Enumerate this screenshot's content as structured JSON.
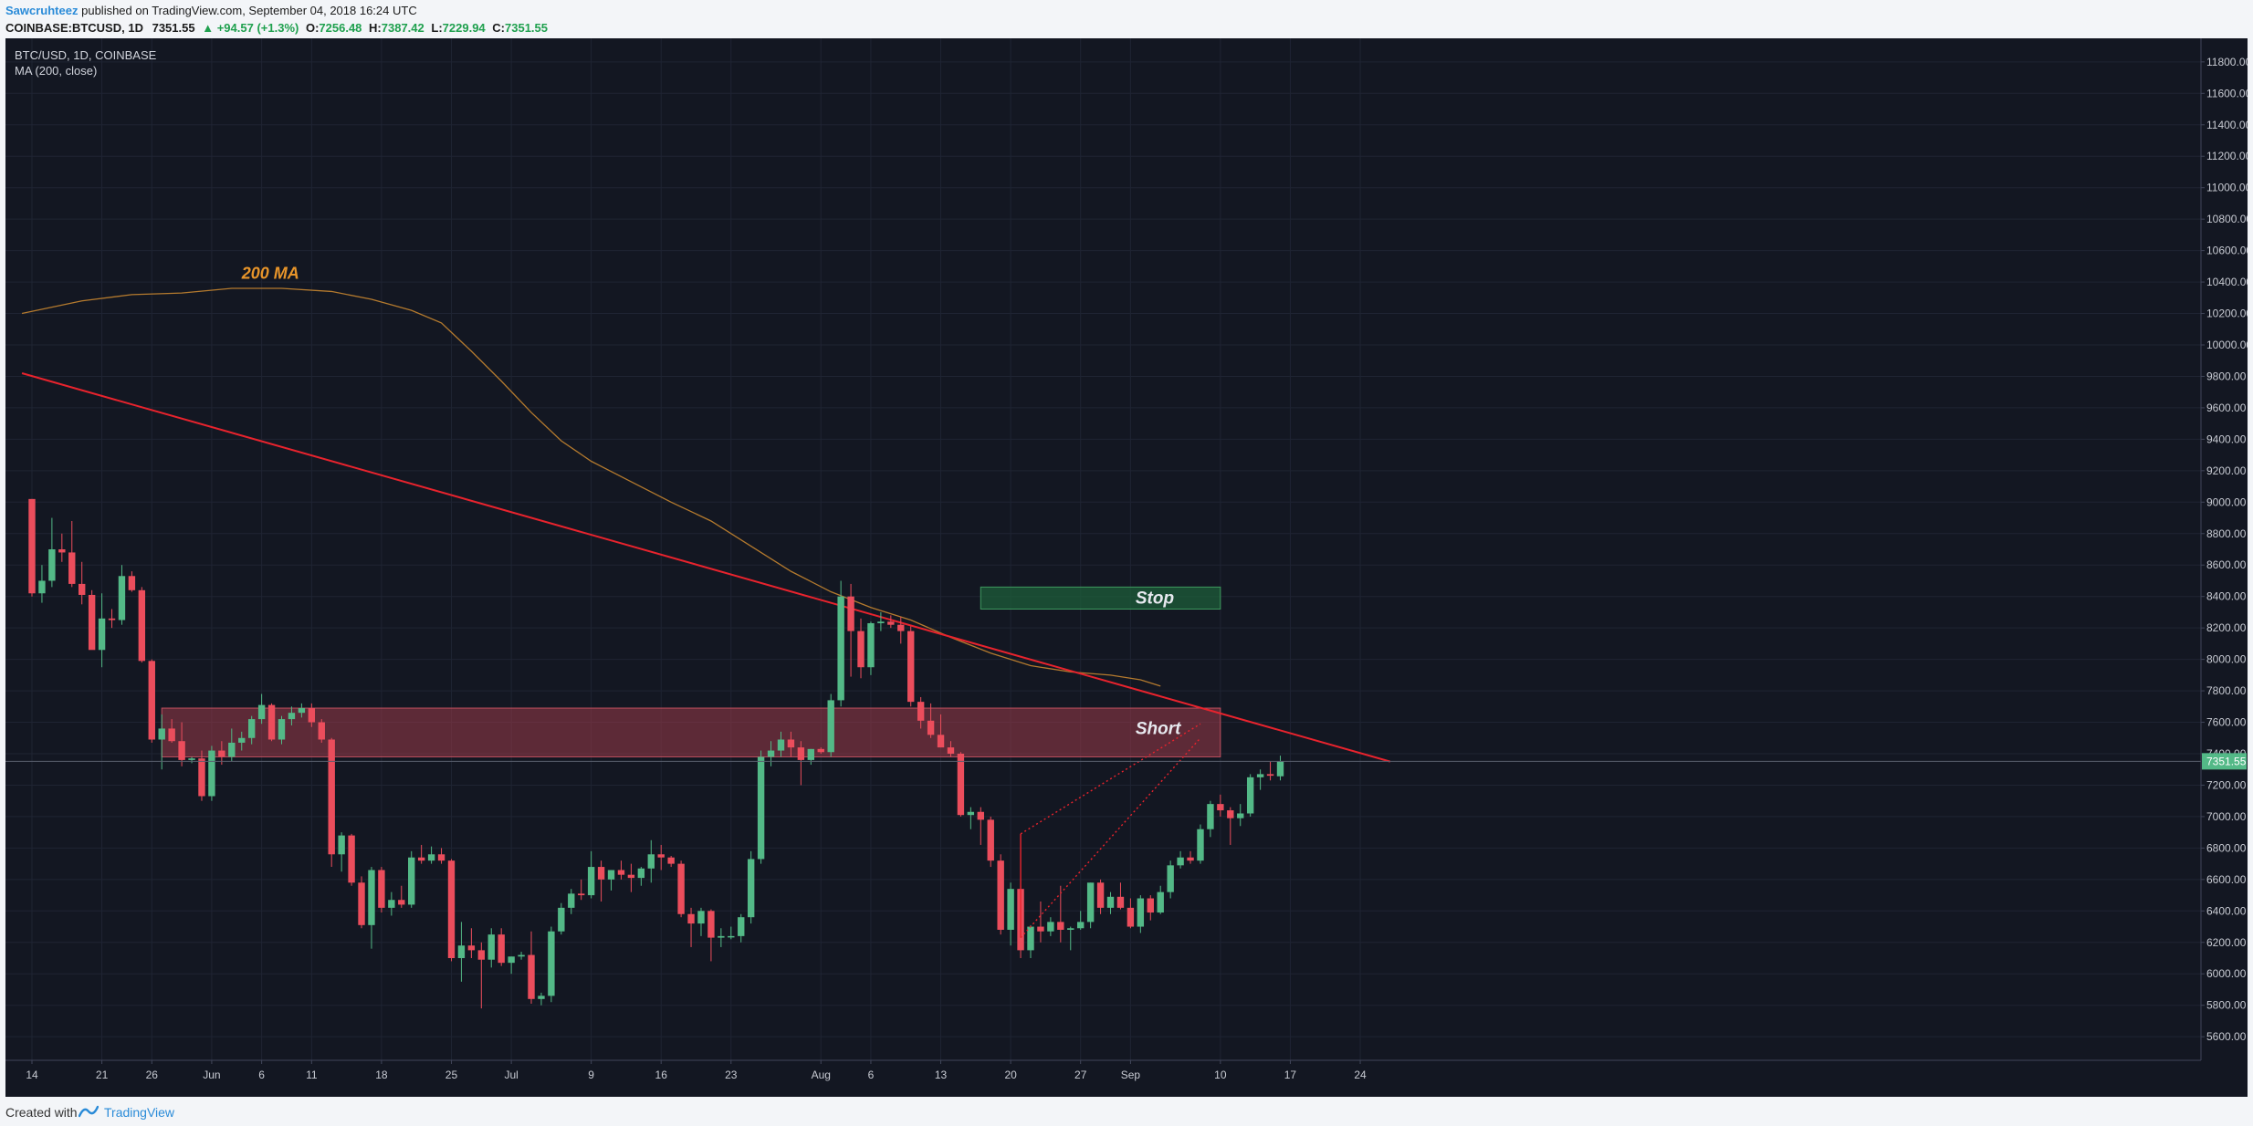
{
  "header": {
    "author": "Sawcruhteez",
    "published_text": "published on TradingView.com, September 04, 2018 16:24 UTC",
    "symbol": "COINBASE:BTCUSD, 1D",
    "last": "7351.55",
    "change": "+94.57 (+1.3%)",
    "open_label": "O:",
    "open": "7256.48",
    "high_label": "H:",
    "high": "7387.42",
    "low_label": "L:",
    "low": "7229.94",
    "close_label": "C:",
    "close": "7351.55"
  },
  "legend": {
    "title": "BTC/USD, 1D, COINBASE",
    "indicator": "MA (200, close)"
  },
  "annotations": {
    "ma_label": "200 MA",
    "stop_label": "Stop",
    "short_label": "Short",
    "price_tag": "7351.55"
  },
  "footer": {
    "created_with": "Created with",
    "brand": "TradingView"
  },
  "colors": {
    "up": "#53b987",
    "down": "#eb4d5c",
    "background": "#131722",
    "ma": "#b47a2e",
    "trendline": "#e8232d",
    "stop_zone": "#1e5e3a",
    "short_zone": "#9b3b49"
  },
  "chart_data": {
    "type": "candlestick",
    "ylim": [
      5450,
      11950
    ],
    "y_ticks": [
      "5600.00",
      "5800.00",
      "6000.00",
      "6200.00",
      "6400.00",
      "6600.00",
      "6800.00",
      "7000.00",
      "7200.00",
      "7400.00",
      "7600.00",
      "7800.00",
      "8000.00",
      "8200.00",
      "8400.00",
      "8600.00",
      "8800.00",
      "9000.00",
      "9200.00",
      "9400.00",
      "9600.00",
      "9800.00",
      "10000.00",
      "10200.00",
      "10400.00",
      "10600.00",
      "10800.00",
      "11000.00",
      "11200.00",
      "11400.00",
      "11600.00",
      "11800.00"
    ],
    "x_ticks": [
      {
        "label": "14",
        "day": 0
      },
      {
        "label": "21",
        "day": 7
      },
      {
        "label": "26",
        "day": 12
      },
      {
        "label": "Jun",
        "day": 18
      },
      {
        "label": "6",
        "day": 23
      },
      {
        "label": "11",
        "day": 28
      },
      {
        "label": "18",
        "day": 35
      },
      {
        "label": "25",
        "day": 42
      },
      {
        "label": "Jul",
        "day": 48
      },
      {
        "label": "9",
        "day": 56
      },
      {
        "label": "16",
        "day": 63
      },
      {
        "label": "23",
        "day": 70
      },
      {
        "label": "Aug",
        "day": 79
      },
      {
        "label": "6",
        "day": 84
      },
      {
        "label": "13",
        "day": 91
      },
      {
        "label": "20",
        "day": 98
      },
      {
        "label": "27",
        "day": 105
      },
      {
        "label": "Sep",
        "day": 110
      },
      {
        "label": "10",
        "day": 119
      },
      {
        "label": "17",
        "day": 126
      },
      {
        "label": "24",
        "day": 133
      }
    ],
    "candles": [
      {
        "o": 9020,
        "h": 9020,
        "l": 8400,
        "c": 8420
      },
      {
        "o": 8420,
        "h": 8600,
        "l": 8360,
        "c": 8500
      },
      {
        "o": 8500,
        "h": 8900,
        "l": 8460,
        "c": 8700
      },
      {
        "o": 8700,
        "h": 8800,
        "l": 8620,
        "c": 8680
      },
      {
        "o": 8680,
        "h": 8880,
        "l": 8460,
        "c": 8480
      },
      {
        "o": 8480,
        "h": 8620,
        "l": 8350,
        "c": 8410
      },
      {
        "o": 8410,
        "h": 8440,
        "l": 8080,
        "c": 8060
      },
      {
        "o": 8060,
        "h": 8420,
        "l": 7950,
        "c": 8260
      },
      {
        "o": 8260,
        "h": 8320,
        "l": 8200,
        "c": 8250
      },
      {
        "o": 8250,
        "h": 8600,
        "l": 8220,
        "c": 8530
      },
      {
        "o": 8530,
        "h": 8560,
        "l": 8430,
        "c": 8440
      },
      {
        "o": 8440,
        "h": 8460,
        "l": 7980,
        "c": 7990
      },
      {
        "o": 7990,
        "h": 8000,
        "l": 7470,
        "c": 7490
      },
      {
        "o": 7490,
        "h": 7650,
        "l": 7300,
        "c": 7560
      },
      {
        "o": 7560,
        "h": 7620,
        "l": 7470,
        "c": 7480
      },
      {
        "o": 7480,
        "h": 7600,
        "l": 7320,
        "c": 7360
      },
      {
        "o": 7360,
        "h": 7380,
        "l": 7340,
        "c": 7370
      },
      {
        "o": 7370,
        "h": 7420,
        "l": 7100,
        "c": 7130
      },
      {
        "o": 7130,
        "h": 7450,
        "l": 7100,
        "c": 7420
      },
      {
        "o": 7420,
        "h": 7480,
        "l": 7330,
        "c": 7380
      },
      {
        "o": 7380,
        "h": 7560,
        "l": 7350,
        "c": 7470
      },
      {
        "o": 7470,
        "h": 7540,
        "l": 7420,
        "c": 7500
      },
      {
        "o": 7500,
        "h": 7640,
        "l": 7460,
        "c": 7620
      },
      {
        "o": 7620,
        "h": 7780,
        "l": 7590,
        "c": 7710
      },
      {
        "o": 7710,
        "h": 7720,
        "l": 7480,
        "c": 7490
      },
      {
        "o": 7490,
        "h": 7640,
        "l": 7460,
        "c": 7620
      },
      {
        "o": 7620,
        "h": 7700,
        "l": 7580,
        "c": 7660
      },
      {
        "o": 7660,
        "h": 7720,
        "l": 7630,
        "c": 7690
      },
      {
        "o": 7690,
        "h": 7720,
        "l": 7570,
        "c": 7600
      },
      {
        "o": 7600,
        "h": 7620,
        "l": 7470,
        "c": 7490
      },
      {
        "o": 7490,
        "h": 7500,
        "l": 6680,
        "c": 6760
      },
      {
        "o": 6760,
        "h": 6900,
        "l": 6650,
        "c": 6880
      },
      {
        "o": 6880,
        "h": 6890,
        "l": 6560,
        "c": 6580
      },
      {
        "o": 6580,
        "h": 6620,
        "l": 6290,
        "c": 6310
      },
      {
        "o": 6310,
        "h": 6680,
        "l": 6160,
        "c": 6660
      },
      {
        "o": 6660,
        "h": 6680,
        "l": 6390,
        "c": 6420
      },
      {
        "o": 6420,
        "h": 6520,
        "l": 6370,
        "c": 6470
      },
      {
        "o": 6470,
        "h": 6560,
        "l": 6420,
        "c": 6440
      },
      {
        "o": 6440,
        "h": 6780,
        "l": 6420,
        "c": 6740
      },
      {
        "o": 6740,
        "h": 6820,
        "l": 6700,
        "c": 6720
      },
      {
        "o": 6720,
        "h": 6810,
        "l": 6700,
        "c": 6760
      },
      {
        "o": 6760,
        "h": 6800,
        "l": 6700,
        "c": 6720
      },
      {
        "o": 6720,
        "h": 6730,
        "l": 6080,
        "c": 6100
      },
      {
        "o": 6100,
        "h": 6330,
        "l": 5950,
        "c": 6180
      },
      {
        "o": 6180,
        "h": 6290,
        "l": 6100,
        "c": 6150
      },
      {
        "o": 6150,
        "h": 6200,
        "l": 5780,
        "c": 6090
      },
      {
        "o": 6090,
        "h": 6290,
        "l": 6040,
        "c": 6250
      },
      {
        "o": 6250,
        "h": 6290,
        "l": 6050,
        "c": 6070
      },
      {
        "o": 6070,
        "h": 6110,
        "l": 6000,
        "c": 6110
      },
      {
        "o": 6110,
        "h": 6140,
        "l": 6090,
        "c": 6120
      },
      {
        "o": 6120,
        "h": 6270,
        "l": 5810,
        "c": 5840
      },
      {
        "o": 5840,
        "h": 5880,
        "l": 5800,
        "c": 5860
      },
      {
        "o": 5860,
        "h": 6300,
        "l": 5820,
        "c": 6270
      },
      {
        "o": 6270,
        "h": 6450,
        "l": 6250,
        "c": 6420
      },
      {
        "o": 6420,
        "h": 6540,
        "l": 6380,
        "c": 6510
      },
      {
        "o": 6510,
        "h": 6600,
        "l": 6470,
        "c": 6500
      },
      {
        "o": 6500,
        "h": 6780,
        "l": 6480,
        "c": 6680
      },
      {
        "o": 6680,
        "h": 6720,
        "l": 6460,
        "c": 6600
      },
      {
        "o": 6600,
        "h": 6660,
        "l": 6530,
        "c": 6660
      },
      {
        "o": 6660,
        "h": 6720,
        "l": 6600,
        "c": 6630
      },
      {
        "o": 6630,
        "h": 6700,
        "l": 6520,
        "c": 6610
      },
      {
        "o": 6610,
        "h": 6680,
        "l": 6560,
        "c": 6670
      },
      {
        "o": 6670,
        "h": 6850,
        "l": 6580,
        "c": 6760
      },
      {
        "o": 6760,
        "h": 6820,
        "l": 6660,
        "c": 6740
      },
      {
        "o": 6740,
        "h": 6750,
        "l": 6680,
        "c": 6700
      },
      {
        "o": 6700,
        "h": 6720,
        "l": 6360,
        "c": 6380
      },
      {
        "o": 6380,
        "h": 6420,
        "l": 6170,
        "c": 6320
      },
      {
        "o": 6320,
        "h": 6420,
        "l": 6240,
        "c": 6400
      },
      {
        "o": 6400,
        "h": 6410,
        "l": 6080,
        "c": 6230
      },
      {
        "o": 6230,
        "h": 6290,
        "l": 6170,
        "c": 6240
      },
      {
        "o": 6240,
        "h": 6300,
        "l": 6220,
        "c": 6240
      },
      {
        "o": 6240,
        "h": 6380,
        "l": 6200,
        "c": 6360
      },
      {
        "o": 6360,
        "h": 6780,
        "l": 6320,
        "c": 6730
      },
      {
        "o": 6730,
        "h": 7420,
        "l": 6700,
        "c": 7380
      },
      {
        "o": 7380,
        "h": 7480,
        "l": 7320,
        "c": 7420
      },
      {
        "o": 7420,
        "h": 7540,
        "l": 7380,
        "c": 7490
      },
      {
        "o": 7490,
        "h": 7540,
        "l": 7380,
        "c": 7440
      },
      {
        "o": 7440,
        "h": 7480,
        "l": 7200,
        "c": 7360
      },
      {
        "o": 7360,
        "h": 7430,
        "l": 7330,
        "c": 7430
      },
      {
        "o": 7430,
        "h": 7440,
        "l": 7400,
        "c": 7410
      },
      {
        "o": 7410,
        "h": 7780,
        "l": 7380,
        "c": 7740
      },
      {
        "o": 7740,
        "h": 8500,
        "l": 7700,
        "c": 8400
      },
      {
        "o": 8400,
        "h": 8480,
        "l": 7890,
        "c": 8180
      },
      {
        "o": 8180,
        "h": 8260,
        "l": 7880,
        "c": 7950
      },
      {
        "o": 7950,
        "h": 8240,
        "l": 7900,
        "c": 8230
      },
      {
        "o": 8230,
        "h": 8300,
        "l": 8180,
        "c": 8240
      },
      {
        "o": 8240,
        "h": 8280,
        "l": 8200,
        "c": 8220
      },
      {
        "o": 8220,
        "h": 8270,
        "l": 8100,
        "c": 8180
      },
      {
        "o": 8180,
        "h": 8210,
        "l": 7700,
        "c": 7730
      },
      {
        "o": 7730,
        "h": 7760,
        "l": 7560,
        "c": 7610
      },
      {
        "o": 7610,
        "h": 7720,
        "l": 7500,
        "c": 7520
      },
      {
        "o": 7520,
        "h": 7650,
        "l": 7440,
        "c": 7440
      },
      {
        "o": 7440,
        "h": 7480,
        "l": 7380,
        "c": 7400
      },
      {
        "o": 7400,
        "h": 7410,
        "l": 7000,
        "c": 7010
      },
      {
        "o": 7010,
        "h": 7060,
        "l": 6920,
        "c": 7030
      },
      {
        "o": 7030,
        "h": 7060,
        "l": 6820,
        "c": 6980
      },
      {
        "o": 6980,
        "h": 7000,
        "l": 6680,
        "c": 6720
      },
      {
        "o": 6720,
        "h": 6760,
        "l": 6250,
        "c": 6280
      },
      {
        "o": 6280,
        "h": 6580,
        "l": 6180,
        "c": 6540
      },
      {
        "o": 6540,
        "h": 6560,
        "l": 6100,
        "c": 6150
      },
      {
        "o": 6150,
        "h": 6310,
        "l": 6100,
        "c": 6300
      },
      {
        "o": 6300,
        "h": 6460,
        "l": 6200,
        "c": 6270
      },
      {
        "o": 6270,
        "h": 6360,
        "l": 6240,
        "c": 6330
      },
      {
        "o": 6330,
        "h": 6560,
        "l": 6200,
        "c": 6280
      },
      {
        "o": 6280,
        "h": 6300,
        "l": 6150,
        "c": 6290
      },
      {
        "o": 6290,
        "h": 6400,
        "l": 6280,
        "c": 6330
      },
      {
        "o": 6330,
        "h": 6580,
        "l": 6290,
        "c": 6580
      },
      {
        "o": 6580,
        "h": 6600,
        "l": 6380,
        "c": 6420
      },
      {
        "o": 6420,
        "h": 6520,
        "l": 6380,
        "c": 6490
      },
      {
        "o": 6490,
        "h": 6580,
        "l": 6410,
        "c": 6420
      },
      {
        "o": 6420,
        "h": 6480,
        "l": 6290,
        "c": 6300
      },
      {
        "o": 6300,
        "h": 6500,
        "l": 6260,
        "c": 6480
      },
      {
        "o": 6480,
        "h": 6500,
        "l": 6340,
        "c": 6390
      },
      {
        "o": 6390,
        "h": 6560,
        "l": 6380,
        "c": 6520
      },
      {
        "o": 6520,
        "h": 6720,
        "l": 6480,
        "c": 6690
      },
      {
        "o": 6690,
        "h": 6780,
        "l": 6670,
        "c": 6740
      },
      {
        "o": 6740,
        "h": 6780,
        "l": 6700,
        "c": 6720
      },
      {
        "o": 6720,
        "h": 6950,
        "l": 6700,
        "c": 6920
      },
      {
        "o": 6920,
        "h": 7100,
        "l": 6870,
        "c": 7080
      },
      {
        "o": 7080,
        "h": 7140,
        "l": 7000,
        "c": 7040
      },
      {
        "o": 7040,
        "h": 7060,
        "l": 6820,
        "c": 6990
      },
      {
        "o": 6990,
        "h": 7080,
        "l": 6940,
        "c": 7020
      },
      {
        "o": 7020,
        "h": 7270,
        "l": 7000,
        "c": 7250
      },
      {
        "o": 7250,
        "h": 7300,
        "l": 7170,
        "c": 7270
      },
      {
        "o": 7270,
        "h": 7350,
        "l": 7230,
        "c": 7260
      },
      {
        "o": 7256.48,
        "h": 7387.42,
        "l": 7229.94,
        "c": 7351.55
      }
    ],
    "ma200": [
      {
        "day": -1,
        "v": 10200
      },
      {
        "day": 5,
        "v": 10280
      },
      {
        "day": 10,
        "v": 10320
      },
      {
        "day": 15,
        "v": 10330
      },
      {
        "day": 20,
        "v": 10360
      },
      {
        "day": 25,
        "v": 10360
      },
      {
        "day": 30,
        "v": 10340
      },
      {
        "day": 34,
        "v": 10290
      },
      {
        "day": 38,
        "v": 10220
      },
      {
        "day": 41,
        "v": 10140
      },
      {
        "day": 44,
        "v": 9960
      },
      {
        "day": 47,
        "v": 9770
      },
      {
        "day": 50,
        "v": 9570
      },
      {
        "day": 53,
        "v": 9390
      },
      {
        "day": 56,
        "v": 9260
      },
      {
        "day": 60,
        "v": 9130
      },
      {
        "day": 64,
        "v": 9000
      },
      {
        "day": 68,
        "v": 8880
      },
      {
        "day": 72,
        "v": 8720
      },
      {
        "day": 76,
        "v": 8560
      },
      {
        "day": 80,
        "v": 8430
      },
      {
        "day": 84,
        "v": 8330
      },
      {
        "day": 88,
        "v": 8250
      },
      {
        "day": 92,
        "v": 8140
      },
      {
        "day": 96,
        "v": 8040
      },
      {
        "day": 100,
        "v": 7960
      },
      {
        "day": 104,
        "v": 7920
      },
      {
        "day": 108,
        "v": 7900
      },
      {
        "day": 111,
        "v": 7870
      },
      {
        "day": 113,
        "v": 7830
      }
    ],
    "trendline": [
      {
        "day": -1,
        "v": 9820
      },
      {
        "day": 136,
        "v": 7350
      }
    ],
    "stop_zone": {
      "from_day": 95,
      "to_day": 119,
      "low": 8320,
      "high": 8460
    },
    "short_zone": {
      "from_day": 13,
      "to_day": 119,
      "low": 7380,
      "high": 7690
    },
    "wedge": {
      "upper": [
        {
          "day": 99,
          "v": 6890
        },
        {
          "day": 117,
          "v": 7590
        }
      ],
      "lower": [
        {
          "day": 99,
          "v": 6230
        },
        {
          "day": 117,
          "v": 7500
        }
      ],
      "left_edge": [
        {
          "day": 99,
          "v": 6890
        },
        {
          "day": 99,
          "v": 6230
        }
      ]
    },
    "last_price": 7351.55
  }
}
